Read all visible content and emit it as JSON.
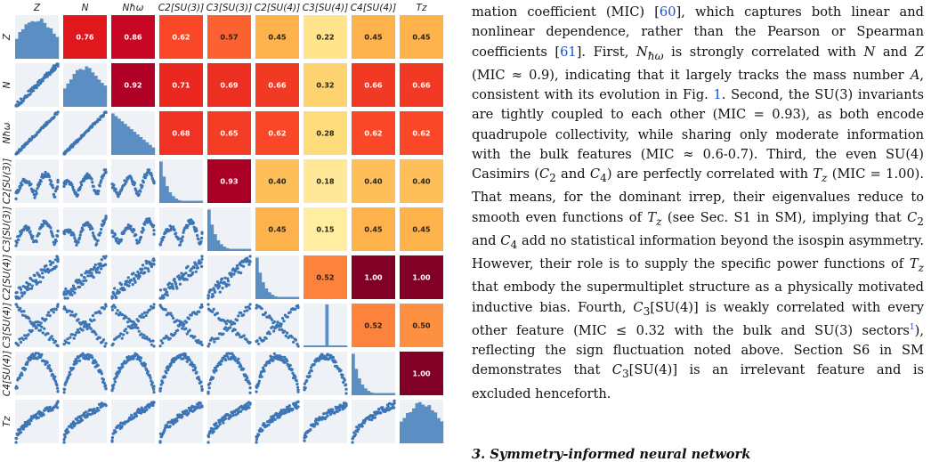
{
  "figure": {
    "variables": [
      "Z",
      "N",
      "N_ħω",
      "C₂[SU(3)]",
      "C₃[SU(3)]",
      "C₂[SU(4)]",
      "C₃[SU(4)]",
      "C₄[SU(4)]",
      "T_z"
    ],
    "col_labels": [
      "Z",
      "N",
      "Nħω",
      "C2[SU(3)]",
      "C3[SU(3)]",
      "C2[SU(4)]",
      "C3[SU(4)]",
      "C4[SU(4)]",
      "Tz"
    ],
    "colors": {
      "hist": "#5b8fc4",
      "scatter": "#3b75b5",
      "panel_bg": "#eef1f5"
    }
  },
  "chart_data": {
    "type": "heatmap",
    "title": "",
    "metric": "MIC",
    "variables": [
      "Z",
      "N",
      "Nħω",
      "C2[SU(3)]",
      "C3[SU(3)]",
      "C2[SU(4)]",
      "C3[SU(4)]",
      "C4[SU(4)]",
      "Tz"
    ],
    "upper_triangle_labels": [
      [
        "0.76",
        "0.86",
        "0.62",
        "0.57",
        "0.45",
        "0.22",
        "0.45",
        "0.45"
      ],
      [
        "0.92",
        "0.71",
        "0.69",
        "0.66",
        "0.32",
        "0.66",
        "0.66"
      ],
      [
        "0.68",
        "0.65",
        "0.62",
        "0.28",
        "0.62",
        "0.62"
      ],
      [
        "0.93",
        "0.40",
        "0.18",
        "0.40",
        "0.40"
      ],
      [
        "0.45",
        "0.15",
        "0.45",
        "0.45"
      ],
      [
        "0.52",
        "1.00",
        "1.00"
      ],
      [
        "0.52",
        "0.50"
      ],
      [
        "1.00"
      ]
    ],
    "diagonal": "histogram",
    "lower_triangle": "scatter"
  },
  "text": {
    "p1": "mation coefficient (MIC) [60], which captures both linear and nonlinear dependence, rather than the Pearson or Spearman coefficients [61]. First, Nħω is strongly correlated with N and Z (MIC ≈ 0.9), indicating that it largely tracks the mass number A, consistent with its evolution in Fig. 1. Second, the SU(3) invariants are tightly coupled to each other (MIC = 0.93), as both encode quadrupole collectivity, while sharing only moderate information with the bulk features (MIC ≈ 0.6-0.7). Third, the even SU(4) Casimirs (C2 and C4) are perfectly correlated with Tz (MIC = 1.00). That means, for the dominant irrep, their eigenvalues reduce to smooth even functions of Tz (see Sec. S1 in SM), implying that C2 and C4 add no statistical information beyond the isospin asymmetry. However, their role is to supply the specific power functions of Tz that embody the supermultiplet structure as a physically motivated inductive bias. Fourth, C3[SU(4)] is weakly correlated with every other feature (MIC ≤ 0.32 with the bulk and SU(3) sectors1), reflecting the sign fluctuation noted above. Section S6 in SM demonstrates that C3[SU(4)] is an irrelevant feature and is excluded henceforth.",
    "seg": {
      "a": "mation coefficient (MIC) [",
      "ref60": "60",
      "b": "], which captures both linear and nonlinear dependence, rather than the Pearson or Spearman coefficients [",
      "ref61": "61",
      "c": "]. First, ",
      "nhw": "N",
      "nhw_sub": "ħω",
      "d": " is strongly correlated with ",
      "n": "N",
      "e": " and ",
      "z": "Z",
      "f": " (MIC ≈ 0.9), indicating that it largely tracks the mass number ",
      "a_sym": "A",
      "g": ", consistent with its evolution in Fig. ",
      "fig1": "1",
      "h": ". Second, the SU(3) invariants are tightly coupled to each other (MIC = 0.93), as both encode quadrupole collectivity, while sharing only moderate information with the bulk features (MIC ≈ 0.6-0.7). Third, the even SU(4) Casimirs (",
      "c2": "C",
      "c2_sub": "2",
      "i": " and ",
      "c4": "C",
      "c4_sub": "4",
      "j": ") are perfectly correlated with ",
      "tz1": "T",
      "tz1_sub": "z",
      "k": " (MIC = 1.00). That means, for the dominant irrep, their eigenvalues reduce to smooth even functions of ",
      "tz2": "T",
      "tz2_sub": "z",
      "l": " (see Sec. S1 in SM), implying that ",
      "c2b": "C",
      "c2b_sub": "2",
      "m": " and ",
      "c4b": "C",
      "c4b_sub": "4",
      "n2": " add no statistical information beyond the isospin asymmetry. However, their role is to supply the specific power functions of ",
      "tz3": "T",
      "tz3_sub": "z",
      "o": " that embody the supermultiplet structure as a physically motivated inductive bias. Fourth, ",
      "c3": "C",
      "c3_sub": "3",
      "p": "[SU(4)] is weakly correlated with every other feature (MIC ≤ 0.32 with the bulk and SU(3) sectors",
      "fn": "1",
      "q": "), reflecting the sign fluctuation noted above. Section S6 in SM demonstrates that ",
      "c3b": "C",
      "c3b_sub": "3",
      "r": "[SU(4)] is an irrelevant feature and is excluded henceforth."
    },
    "next_heading": "3. Symmetry-informed neural network"
  }
}
